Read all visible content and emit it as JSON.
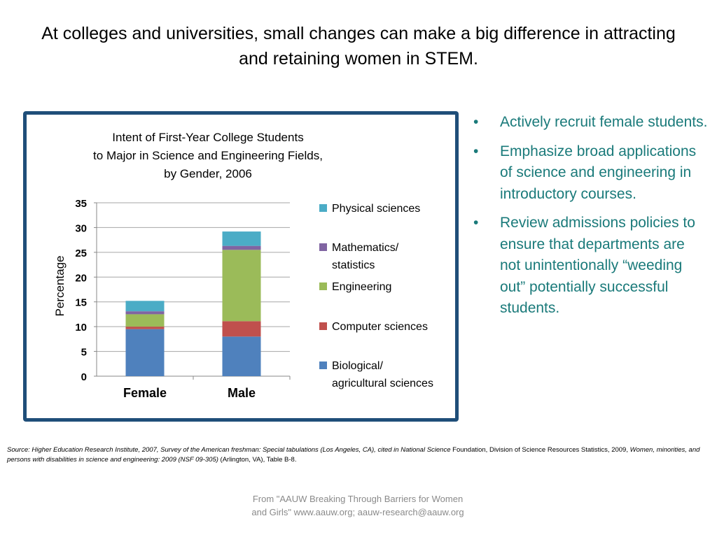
{
  "slide": {
    "title": "At colleges and universities, small changes can make a big difference in attracting and retaining women in STEM."
  },
  "bullets": [
    "Actively recruit female students.",
    "Emphasize broad applications of science and engineering in introductory courses.",
    "Review admissions policies to ensure that departments are not unintentionally “weeding out” potentially successful students."
  ],
  "source": {
    "text_italic_1": "Source: Higher Education Research Institute, 2007, Survey of the American freshman: Special tabulations (Los Angeles, CA), cited in National Science",
    "text_regular_1": " Foundation, Division of Science Resources Statistics, 2009, ",
    "text_italic_2": "Women, minorities, and persons with disabilities in science and engineering: 2009 (NSF 09-305)",
    "text_regular_2": " (Arlington, VA), Table B-8."
  },
  "footer": "From \"AAUW Breaking Through Barriers for Women and Girls\" www.aauw.org; aauw-research@aauw.org",
  "colors": {
    "frame": "#1f4e79",
    "bullet_text": "#1a7a7a"
  },
  "chart_data": {
    "type": "bar",
    "stacked": true,
    "title_lines": [
      "Intent of First-Year College Students",
      "to Major in Science and Engineering Fields,",
      "by Gender, 2006"
    ],
    "ylabel": "Percentage",
    "xlabel": "",
    "ylim": [
      0,
      35
    ],
    "yticks": [
      0,
      5,
      10,
      15,
      20,
      25,
      30,
      35
    ],
    "grid": true,
    "legend_position": "right",
    "categories": [
      "Female",
      "Male"
    ],
    "series": [
      {
        "name": "Biological/ agricultural sciences",
        "legend_lines": [
          "Biological/",
          "agricultural sciences"
        ],
        "color": "#4f81bd",
        "values": [
          9.5,
          8.0
        ]
      },
      {
        "name": "Computer sciences",
        "legend_lines": [
          "Computer sciences"
        ],
        "color": "#c0504d",
        "values": [
          0.5,
          3.1
        ]
      },
      {
        "name": "Engineering",
        "legend_lines": [
          "Engineering"
        ],
        "color": "#9bbb59",
        "values": [
          2.5,
          14.4
        ]
      },
      {
        "name": "Mathematics/ statistics",
        "legend_lines": [
          "Mathematics/",
          "statistics"
        ],
        "color": "#8064a2",
        "values": [
          0.6,
          0.8
        ]
      },
      {
        "name": "Physical sciences",
        "legend_lines": [
          "Physical sciences"
        ],
        "color": "#4bacc6",
        "values": [
          2.1,
          2.9
        ]
      }
    ]
  }
}
